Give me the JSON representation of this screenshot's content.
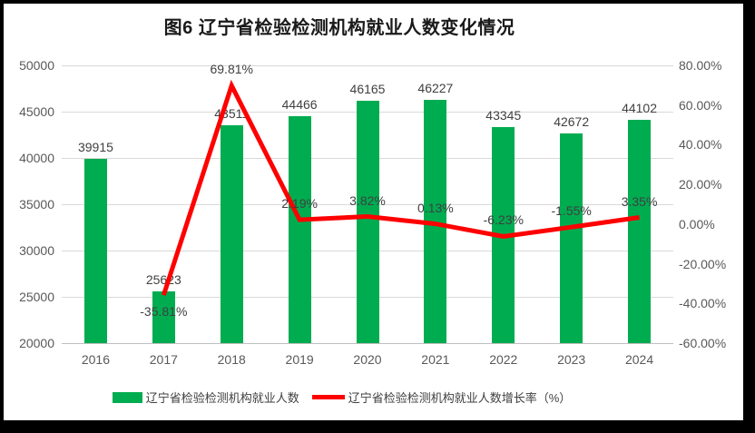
{
  "page": {
    "title": "图6  辽宁省检验检测机构就业人数变化情况"
  },
  "legend": {
    "bar_label": "辽宁省检验检测机构就业人数",
    "line_label": "辽宁省检验检测机构就业人数增长率（%）"
  },
  "colors": {
    "bar": "#00AC50",
    "line": "#FE0000",
    "grid": "#D9D9D9",
    "axis_line": "#BFBFBF",
    "axis_text": "#595959",
    "label_text": "#404040",
    "title_text": "#1A1A1A"
  },
  "chart_data": {
    "type": "combo",
    "title": "图6  辽宁省检验检测机构就业人数变化情况",
    "categories": [
      "2016",
      "2017",
      "2018",
      "2019",
      "2020",
      "2021",
      "2022",
      "2023",
      "2024"
    ],
    "series": [
      {
        "name": "辽宁省检验检测机构就业人数",
        "type": "bar",
        "axis": "left",
        "values": [
          39915,
          25623,
          43511,
          44466,
          46165,
          46227,
          43345,
          42672,
          44102
        ],
        "data_labels": [
          "39915",
          "25623",
          "43511",
          "44466",
          "46165",
          "46227",
          "43345",
          "42672",
          "44102"
        ]
      },
      {
        "name": "辽宁省检验检测机构就业人数增长率（%）",
        "type": "line",
        "axis": "right",
        "values": [
          null,
          -35.81,
          69.81,
          2.19,
          3.82,
          0.13,
          -6.23,
          -1.55,
          3.35
        ],
        "data_labels": [
          null,
          "-35.81%",
          "69.81%",
          "2.19%",
          "3.82%",
          "0.13%",
          "-6.23%",
          "-1.55%",
          "3.35%"
        ]
      }
    ],
    "left_axis": {
      "min": 20000,
      "max": 50000,
      "step": 5000,
      "tick_labels": [
        "50000",
        "45000",
        "40000",
        "35000",
        "30000",
        "25000",
        "20000"
      ]
    },
    "right_axis": {
      "min": -60,
      "max": 80,
      "step": 20,
      "tick_labels": [
        "80.00%",
        "60.00%",
        "40.00%",
        "20.00%",
        "0.00%",
        "-20.00%",
        "-40.00%",
        "-60.00%"
      ]
    },
    "grid": true,
    "legend_position": "bottom"
  }
}
